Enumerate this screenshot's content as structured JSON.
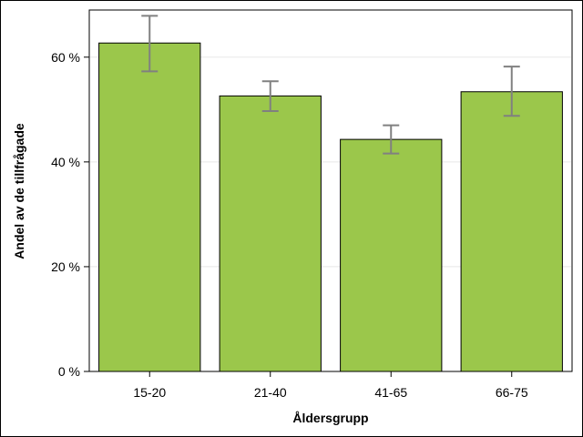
{
  "chart_data": {
    "type": "bar",
    "title": "",
    "xlabel": "Åldersgrupp",
    "ylabel": "Andel av de tillfrågade",
    "categories": [
      "15-20",
      "21-40",
      "41-65",
      "66-75"
    ],
    "values": [
      62.7,
      52.6,
      44.3,
      53.4
    ],
    "error_low": [
      57.3,
      49.7,
      41.6,
      48.8
    ],
    "error_high": [
      67.9,
      55.4,
      47.0,
      58.2
    ],
    "ylim": [
      0,
      69
    ],
    "yticks": [
      0,
      20,
      40,
      60
    ],
    "ytick_labels": [
      "0 %",
      "20 %",
      "40 %",
      "60 %"
    ],
    "grid": true,
    "colors": {
      "bar_fill": "#9BC74B",
      "bar_stroke": "#000000",
      "error_bar": "#808080",
      "grid": "#e8e8e8"
    }
  }
}
